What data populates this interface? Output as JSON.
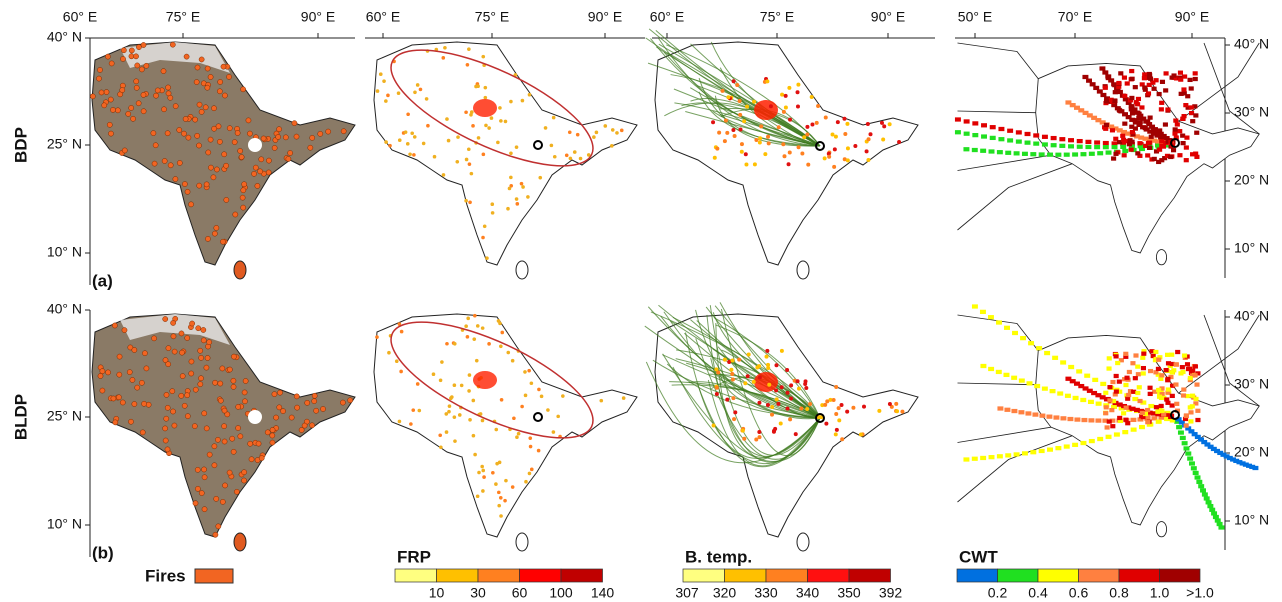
{
  "rows": [
    {
      "label": "BDP",
      "tag": "(a)"
    },
    {
      "label": "BLDP",
      "tag": "(b)"
    }
  ],
  "top_axes": [
    [
      "60° E",
      "75° E",
      "90° E"
    ],
    [
      "60° E",
      "75° E",
      "90° E"
    ],
    [
      "60° E",
      "75° E",
      "90° E"
    ],
    [
      "50° E",
      "70° E",
      "90° E"
    ]
  ],
  "left_axis": [
    [
      "40° N",
      "25° N",
      "10° N"
    ],
    [
      "40° N",
      "25° N",
      "10° N"
    ]
  ],
  "right_axis": [
    [
      "40° N",
      "30° N",
      "20° N",
      "10° N"
    ],
    [
      "40° N",
      "30° N",
      "20° N",
      "10° N"
    ]
  ],
  "legends": [
    {
      "title": "Fires",
      "colors": [
        "#f26522"
      ]
    },
    {
      "title": "FRP",
      "colors": [
        "#ffff80",
        "#ffc000",
        "#ff8020",
        "#ff0000",
        "#c00000"
      ],
      "labels": [
        "10",
        "30",
        "60",
        "100",
        "140"
      ]
    },
    {
      "title": "B. temp.",
      "colors": [
        "#ffff80",
        "#ffc000",
        "#ff8020",
        "#ff1010",
        "#c00000"
      ],
      "labels": [
        "307",
        "320",
        "330",
        "340",
        "350",
        "392"
      ]
    },
    {
      "title": "CWT",
      "colors": [
        "#0070e0",
        "#20e020",
        "#ffff00",
        "#ff8040",
        "#e00000",
        "#a00000"
      ],
      "labels": [
        "0.2",
        "0.4",
        "0.6",
        "0.8",
        "1.0",
        ">1.0"
      ]
    }
  ]
}
